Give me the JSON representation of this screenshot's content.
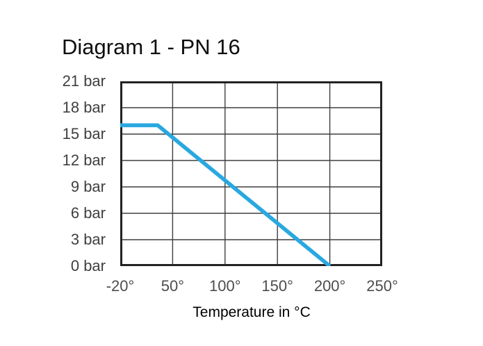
{
  "chart_data": {
    "type": "line",
    "title": "Diagram 1 - PN 16",
    "xlabel": "Temperature in °C",
    "ylabel": "",
    "x_tick_labels": [
      "-20°",
      "50°",
      "100°",
      "150°",
      "200°",
      "250°"
    ],
    "x_tick_values": [
      -20,
      50,
      100,
      150,
      200,
      250
    ],
    "x_axis_scale": "equal spacing per labeled tick (non-linear between -20 and 50)",
    "y_tick_labels": [
      "21 bar",
      "18 bar",
      "15 bar",
      "12 bar",
      "9 bar",
      "6 bar",
      "3 bar",
      "0 bar"
    ],
    "y_tick_values": [
      21,
      18,
      15,
      12,
      9,
      6,
      3,
      0
    ],
    "ylim": [
      0,
      21
    ],
    "grid": true,
    "legend": false,
    "series": [
      {
        "name": "PN 16",
        "color": "#29a8e0",
        "points": [
          {
            "temperature_c": -20,
            "pressure_bar": 16
          },
          {
            "temperature_c": 30,
            "pressure_bar": 16
          },
          {
            "temperature_c": 200,
            "pressure_bar": 0
          }
        ]
      }
    ],
    "colors": {
      "grid": "#3e3e3e",
      "border": "#222222",
      "line": "#29a8e0",
      "y_tick_text": "#3f3f3f",
      "x_tick_text": "#4d4d4d",
      "title_text": "#0e0e0e",
      "axis_title_text": "#000000",
      "background": "#ffffff"
    }
  }
}
